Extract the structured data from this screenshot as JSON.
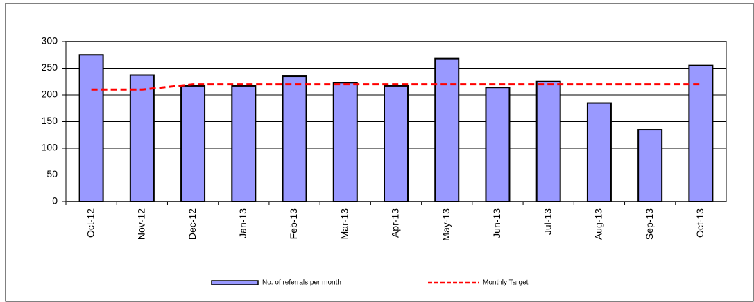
{
  "chart_data": {
    "type": "bar",
    "categories": [
      "Oct-12",
      "Nov-12",
      "Dec-12",
      "Jan-13",
      "Feb-13",
      "Mar-13",
      "Apr-13",
      "May-13",
      "Jun-13",
      "Jul-13",
      "Aug-13",
      "Sep-13",
      "Oct-13"
    ],
    "series": [
      {
        "name": "No. of referrals per month",
        "type": "bar",
        "color": "#9999ff",
        "values": [
          275,
          237,
          217,
          217,
          235,
          223,
          217,
          268,
          214,
          225,
          185,
          135,
          255
        ]
      },
      {
        "name": "Monthly Target",
        "type": "line",
        "color": "#ff0000",
        "values": [
          210,
          210,
          220,
          220,
          220,
          220,
          220,
          220,
          220,
          220,
          220,
          220,
          220
        ]
      }
    ],
    "ylim": [
      0,
      300
    ],
    "yticks": [
      0,
      50,
      100,
      150,
      200,
      250,
      300
    ],
    "grid": true,
    "legend": "bottom"
  }
}
